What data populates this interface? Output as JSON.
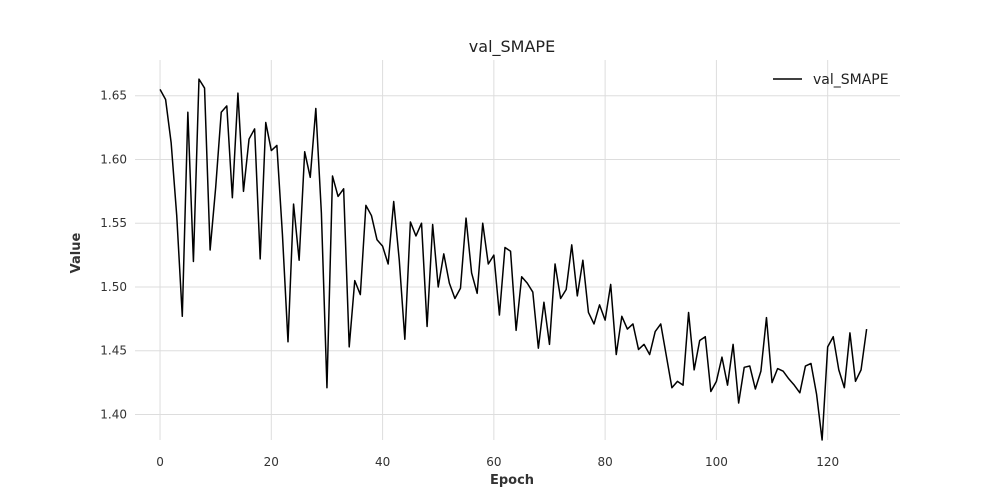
{
  "chart_data": {
    "type": "line",
    "title": "val_SMAPE",
    "xlabel": "Epoch",
    "ylabel": "Value",
    "xlim": [
      -4.5,
      133
    ],
    "ylim": [
      1.38,
      1.678
    ],
    "xticks": [
      0,
      20,
      40,
      60,
      80,
      100,
      120
    ],
    "yticks": [
      1.4,
      1.45,
      1.5,
      1.55,
      1.6,
      1.65
    ],
    "xtick_labels": [
      "0",
      "20",
      "40",
      "60",
      "80",
      "100",
      "120"
    ],
    "ytick_labels": [
      "1.40",
      "1.45",
      "1.50",
      "1.55",
      "1.60",
      "1.65"
    ],
    "grid": true,
    "legend_position": "top-right",
    "series": [
      {
        "name": "val_SMAPE",
        "color": "#000000",
        "x": [
          0,
          1,
          2,
          3,
          4,
          5,
          6,
          7,
          8,
          9,
          10,
          11,
          12,
          13,
          14,
          15,
          16,
          17,
          18,
          19,
          20,
          21,
          22,
          23,
          24,
          25,
          26,
          27,
          28,
          29,
          30,
          31,
          32,
          33,
          34,
          35,
          36,
          37,
          38,
          39,
          40,
          41,
          42,
          43,
          44,
          45,
          46,
          47,
          48,
          49,
          50,
          51,
          52,
          53,
          54,
          55,
          56,
          57,
          58,
          59,
          60,
          61,
          62,
          63,
          64,
          65,
          66,
          67,
          68,
          69,
          70,
          71,
          72,
          73,
          74,
          75,
          76,
          77,
          78,
          79,
          80,
          81,
          82,
          83,
          84,
          85,
          86,
          87,
          88,
          89,
          90,
          91,
          92,
          93,
          94,
          95,
          96,
          97,
          98,
          99,
          100,
          101,
          102,
          103,
          104,
          105,
          106,
          107,
          108,
          109,
          110,
          111,
          112,
          113,
          114,
          115,
          116,
          117,
          118,
          119,
          120,
          121,
          122,
          123,
          124,
          125,
          126,
          127
        ],
        "y": [
          1.655,
          1.647,
          1.613,
          1.556,
          1.477,
          1.637,
          1.52,
          1.663,
          1.656,
          1.529,
          1.578,
          1.637,
          1.642,
          1.57,
          1.652,
          1.575,
          1.616,
          1.624,
          1.522,
          1.629,
          1.607,
          1.611,
          1.541,
          1.457,
          1.565,
          1.521,
          1.606,
          1.586,
          1.64,
          1.558,
          1.421,
          1.587,
          1.571,
          1.577,
          1.453,
          1.505,
          1.494,
          1.564,
          1.556,
          1.537,
          1.532,
          1.518,
          1.567,
          1.521,
          1.459,
          1.551,
          1.54,
          1.55,
          1.469,
          1.549,
          1.5,
          1.526,
          1.503,
          1.491,
          1.499,
          1.554,
          1.511,
          1.495,
          1.55,
          1.518,
          1.525,
          1.478,
          1.531,
          1.528,
          1.466,
          1.508,
          1.503,
          1.496,
          1.452,
          1.488,
          1.455,
          1.518,
          1.491,
          1.498,
          1.533,
          1.493,
          1.521,
          1.48,
          1.471,
          1.486,
          1.474,
          1.502,
          1.447,
          1.477,
          1.467,
          1.471,
          1.451,
          1.455,
          1.447,
          1.465,
          1.471,
          1.446,
          1.421,
          1.426,
          1.423,
          1.48,
          1.435,
          1.458,
          1.461,
          1.418,
          1.426,
          1.445,
          1.423,
          1.455,
          1.409,
          1.437,
          1.438,
          1.42,
          1.434,
          1.476,
          1.425,
          1.436,
          1.434,
          1.428,
          1.423,
          1.417,
          1.438,
          1.44,
          1.416,
          1.38,
          1.453,
          1.461,
          1.435,
          1.421,
          1.464,
          1.426,
          1.435,
          1.467
        ]
      }
    ]
  }
}
